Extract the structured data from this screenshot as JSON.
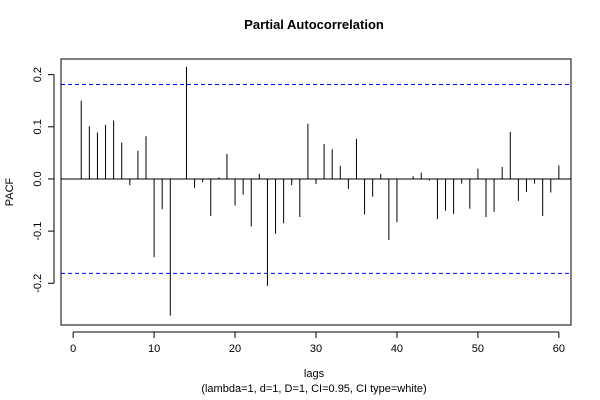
{
  "chart_data": {
    "type": "bar",
    "title": "Partial Autocorrelation",
    "xlabel": "lags",
    "ylabel": "PACF",
    "subtitle": "(lambda=1, d=1, D=1, CI=0.95, CI type=white)",
    "xlim": [
      -1.5,
      61.5
    ],
    "ylim": [
      -0.28,
      0.23
    ],
    "x_ticks": [
      0,
      10,
      20,
      30,
      40,
      50,
      60
    ],
    "x_tick_labels": [
      "0",
      "10",
      "20",
      "30",
      "40",
      "50",
      "60"
    ],
    "y_ticks": [
      -0.2,
      -0.1,
      0.0,
      0.1,
      0.2
    ],
    "y_tick_labels": [
      "-0.2",
      "-0.1",
      "0.0",
      "0.1",
      "0.2"
    ],
    "ci_upper": 0.181,
    "ci_lower": -0.181,
    "ci_color": "#0000ff",
    "bar_color": "#000000",
    "grid": false,
    "lags": [
      1,
      2,
      3,
      4,
      5,
      6,
      7,
      8,
      9,
      10,
      11,
      12,
      13,
      14,
      15,
      16,
      17,
      18,
      19,
      20,
      21,
      22,
      23,
      24,
      25,
      26,
      27,
      28,
      29,
      30,
      31,
      32,
      33,
      34,
      35,
      36,
      37,
      38,
      39,
      40,
      41,
      42,
      43,
      44,
      45,
      46,
      47,
      48,
      49,
      50,
      51,
      52,
      53,
      54,
      55,
      56,
      57,
      58,
      59,
      60
    ],
    "values": [
      0.15,
      0.101,
      0.089,
      0.104,
      0.112,
      0.07,
      -0.012,
      0.054,
      0.082,
      -0.15,
      -0.058,
      -0.262,
      0.0,
      0.215,
      -0.017,
      -0.006,
      -0.071,
      0.003,
      0.048,
      -0.051,
      -0.03,
      -0.091,
      0.01,
      -0.205,
      -0.105,
      -0.085,
      -0.012,
      -0.073,
      0.106,
      -0.01,
      0.067,
      0.057,
      0.025,
      -0.019,
      0.077,
      -0.068,
      -0.034,
      0.01,
      -0.117,
      -0.083,
      0.0,
      0.005,
      0.012,
      -0.003,
      -0.077,
      -0.061,
      -0.067,
      -0.009,
      -0.057,
      0.02,
      -0.073,
      -0.063,
      0.023,
      0.09,
      -0.042,
      -0.025,
      -0.009,
      -0.071,
      -0.026,
      0.026
    ]
  }
}
